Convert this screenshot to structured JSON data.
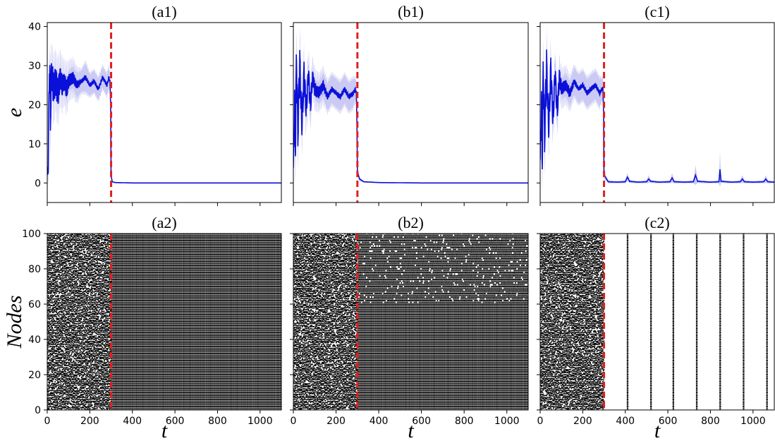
{
  "chart_data": [
    {
      "type": "line",
      "title": "(a1)",
      "ylabel": "e",
      "xlabel": "",
      "xlim": [
        0,
        1100
      ],
      "ylim": [
        -5,
        41
      ],
      "xticks": [
        0,
        200,
        400,
        600,
        800,
        1000
      ],
      "yticks": [
        0,
        10,
        20,
        30,
        40
      ],
      "show_xtick_labels": false,
      "show_ytick_labels": true,
      "switch_time": 300,
      "switch_color": "#e02020",
      "series_color": "#0a10d8",
      "band_color": "#b8b8f0",
      "series": [
        {
          "x": [
            0,
            5,
            10,
            15,
            20,
            30,
            40,
            50,
            60,
            70,
            80,
            90,
            100,
            120,
            140,
            160,
            180,
            200,
            220,
            240,
            260,
            280,
            290,
            295,
            298,
            300,
            305,
            320,
            400,
            600,
            800,
            1000,
            1100
          ],
          "y": [
            2,
            5,
            31,
            18,
            28,
            24,
            26,
            23,
            27,
            25,
            26,
            24,
            26,
            27,
            25,
            26,
            27,
            25,
            26,
            24,
            27,
            25,
            27,
            26,
            20,
            2,
            0.3,
            0.1,
            0,
            0,
            0,
            0,
            0
          ],
          "amp": [
            0,
            3,
            4,
            8,
            5,
            6,
            5,
            6,
            5,
            5,
            4,
            5,
            4,
            4,
            4,
            3,
            4,
            3,
            3,
            3,
            3,
            3,
            3,
            2,
            2,
            1,
            0.2,
            0.1,
            0,
            0,
            0,
            0,
            0
          ]
        }
      ]
    },
    {
      "type": "line",
      "title": "(b1)",
      "ylabel": "",
      "xlabel": "",
      "xlim": [
        0,
        1100
      ],
      "ylim": [
        -5,
        41
      ],
      "xticks": [
        0,
        200,
        400,
        600,
        800,
        1000
      ],
      "yticks": [
        0,
        10,
        20,
        30,
        40
      ],
      "show_xtick_labels": false,
      "show_ytick_labels": false,
      "switch_time": 300,
      "switch_color": "#e02020",
      "series_color": "#0a10d8",
      "band_color": "#b8b8f0",
      "series": [
        {
          "x": [
            0,
            5,
            10,
            15,
            20,
            30,
            40,
            50,
            60,
            70,
            80,
            90,
            100,
            120,
            140,
            160,
            180,
            200,
            220,
            240,
            260,
            280,
            290,
            295,
            298,
            300,
            310,
            330,
            400,
            600,
            800,
            1000,
            1100
          ],
          "y": [
            3,
            20,
            10,
            34,
            12,
            30,
            15,
            28,
            18,
            28,
            20,
            27,
            24,
            23,
            25,
            22,
            24,
            23,
            22,
            24,
            22,
            23,
            24,
            23,
            15,
            3,
            1,
            0.3,
            0.1,
            0,
            0,
            0,
            0
          ],
          "amp": [
            1,
            8,
            6,
            6,
            6,
            6,
            5,
            5,
            5,
            5,
            5,
            4,
            4,
            4,
            4,
            4,
            4,
            4,
            4,
            4,
            4,
            4,
            3,
            3,
            3,
            1,
            0.5,
            0.2,
            0.1,
            0,
            0,
            0,
            0
          ]
        }
      ]
    },
    {
      "type": "line",
      "title": "(c1)",
      "ylabel": "",
      "xlabel": "",
      "xlim": [
        0,
        1100
      ],
      "ylim": [
        -5,
        41
      ],
      "xticks": [
        0,
        200,
        400,
        600,
        800,
        1000
      ],
      "yticks": [
        0,
        10,
        20,
        30,
        40
      ],
      "show_xtick_labels": false,
      "show_ytick_labels": false,
      "switch_time": 300,
      "switch_color": "#e02020",
      "series_color": "#0a10d8",
      "band_color": "#b8b8f0",
      "series": [
        {
          "x": [
            0,
            5,
            10,
            15,
            20,
            30,
            40,
            50,
            60,
            70,
            80,
            90,
            100,
            120,
            140,
            160,
            180,
            200,
            220,
            240,
            260,
            280,
            290,
            295,
            298,
            300,
            320,
            360,
            400,
            410,
            420,
            460,
            500,
            510,
            520,
            560,
            610,
            620,
            630,
            680,
            720,
            730,
            740,
            800,
            840,
            845,
            850,
            900,
            940,
            950,
            960,
            1000,
            1050,
            1060,
            1070,
            1100
          ],
          "y": [
            5,
            20,
            8,
            32,
            10,
            30,
            14,
            29,
            16,
            28,
            18,
            27,
            24,
            25,
            23,
            26,
            24,
            25,
            23,
            24,
            25,
            23,
            24,
            24,
            18,
            2,
            0.3,
            0.2,
            0.3,
            1.5,
            0.4,
            0.2,
            0.3,
            1,
            0.4,
            0.2,
            0.3,
            1.3,
            0.3,
            0.2,
            0.3,
            2,
            0.4,
            0.2,
            0.3,
            3.5,
            0.4,
            0.2,
            0.3,
            1,
            0.3,
            0.2,
            0.3,
            1,
            0.3,
            0.2
          ],
          "amp": [
            1,
            8,
            6,
            6,
            6,
            6,
            5,
            5,
            5,
            5,
            5,
            4,
            4,
            4,
            4,
            4,
            4,
            4,
            4,
            4,
            4,
            4,
            3,
            3,
            3,
            1,
            0.4,
            0.3,
            0.4,
            1,
            0.4,
            0.3,
            0.4,
            1,
            0.4,
            0.3,
            0.4,
            1.2,
            0.4,
            0.3,
            0.4,
            2.5,
            0.4,
            0.3,
            0.4,
            4.5,
            0.4,
            0.3,
            0.4,
            1,
            0.4,
            0.3,
            0.4,
            1,
            0.4,
            0.3
          ]
        }
      ]
    },
    {
      "type": "scatter",
      "title": "(a2)",
      "ylabel": "Nodes",
      "xlabel": "t",
      "xlim": [
        0,
        1100
      ],
      "ylim": [
        0,
        100
      ],
      "xticks": [
        0,
        200,
        400,
        600,
        800,
        1000
      ],
      "yticks": [
        0,
        20,
        40,
        60,
        80,
        100
      ],
      "show_xtick_labels": true,
      "show_ytick_labels": true,
      "switch_time": 300,
      "switch_color": "#e02020",
      "raster_before": "dense-irregular",
      "raster_after": "dense-synchronous",
      "after_columns_every": 6
    },
    {
      "type": "scatter",
      "title": "(b2)",
      "ylabel": "",
      "xlabel": "t",
      "xlim": [
        0,
        1100
      ],
      "ylim": [
        0,
        100
      ],
      "xticks": [
        0,
        200,
        400,
        600,
        800,
        1000
      ],
      "yticks": [
        0,
        20,
        40,
        60,
        80,
        100
      ],
      "show_xtick_labels": true,
      "show_ytick_labels": false,
      "switch_time": 300,
      "switch_color": "#e02020",
      "raster_before": "dense-irregular",
      "raster_after": "cluster-split",
      "split_node": 60,
      "after_columns_every": 6
    },
    {
      "type": "scatter",
      "title": "(c2)",
      "ylabel": "",
      "xlabel": "t",
      "xlim": [
        0,
        1100
      ],
      "ylim": [
        0,
        100
      ],
      "xticks": [
        0,
        200,
        400,
        600,
        800,
        1000
      ],
      "yticks": [
        0,
        20,
        40,
        60,
        80,
        100
      ],
      "show_xtick_labels": true,
      "show_ytick_labels": false,
      "switch_time": 300,
      "switch_color": "#e02020",
      "raster_before": "dense-irregular",
      "raster_after": "sparse-synchronous",
      "burst_times": [
        410,
        520,
        625,
        735,
        845,
        955,
        1065
      ]
    }
  ]
}
